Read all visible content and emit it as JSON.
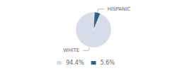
{
  "chart_data": {
    "type": "pie",
    "categories": [
      "WHITE",
      "HISPANIC"
    ],
    "values": [
      94.4,
      5.6
    ],
    "value_labels": [
      "94.4%",
      "5.6%"
    ],
    "colors": [
      "#d6dde8",
      "#2e6487"
    ],
    "legend": "bottom"
  }
}
